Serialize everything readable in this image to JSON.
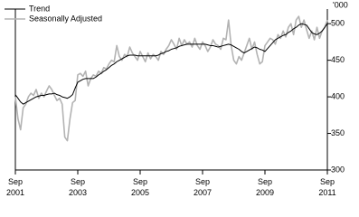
{
  "chart_data": {
    "type": "line",
    "y_unit": "'000",
    "x": [
      "2001-09",
      "2001-10",
      "2001-11",
      "2001-12",
      "2002-01",
      "2002-02",
      "2002-03",
      "2002-04",
      "2002-05",
      "2002-06",
      "2002-07",
      "2002-08",
      "2002-09",
      "2002-10",
      "2002-11",
      "2002-12",
      "2003-01",
      "2003-02",
      "2003-03",
      "2003-04",
      "2003-05",
      "2003-06",
      "2003-07",
      "2003-08",
      "2003-09",
      "2003-10",
      "2003-11",
      "2003-12",
      "2004-01",
      "2004-02",
      "2004-03",
      "2004-04",
      "2004-05",
      "2004-06",
      "2004-07",
      "2004-08",
      "2004-09",
      "2004-10",
      "2004-11",
      "2004-12",
      "2005-01",
      "2005-02",
      "2005-03",
      "2005-04",
      "2005-05",
      "2005-06",
      "2005-07",
      "2005-08",
      "2005-09",
      "2005-10",
      "2005-11",
      "2005-12",
      "2006-01",
      "2006-02",
      "2006-03",
      "2006-04",
      "2006-05",
      "2006-06",
      "2006-07",
      "2006-08",
      "2006-09",
      "2006-10",
      "2006-11",
      "2006-12",
      "2007-01",
      "2007-02",
      "2007-03",
      "2007-04",
      "2007-05",
      "2007-06",
      "2007-07",
      "2007-08",
      "2007-09",
      "2007-10",
      "2007-11",
      "2007-12",
      "2008-01",
      "2008-02",
      "2008-03",
      "2008-04",
      "2008-05",
      "2008-06",
      "2008-07",
      "2008-08",
      "2008-09",
      "2008-10",
      "2008-11",
      "2008-12",
      "2009-01",
      "2009-02",
      "2009-03",
      "2009-04",
      "2009-05",
      "2009-06",
      "2009-07",
      "2009-08",
      "2009-09",
      "2009-10",
      "2009-11",
      "2009-12",
      "2010-01",
      "2010-02",
      "2010-03",
      "2010-04",
      "2010-05",
      "2010-06",
      "2010-07",
      "2010-08",
      "2010-09",
      "2010-10",
      "2010-11",
      "2010-12",
      "2011-01",
      "2011-02",
      "2011-03",
      "2011-04",
      "2011-05",
      "2011-06",
      "2011-07",
      "2011-08",
      "2011-09"
    ],
    "xlim": [
      "2001-09",
      "2011-09"
    ],
    "xticks": [
      {
        "value": "2001-09",
        "label": "Sep 2001"
      },
      {
        "value": "2003-09",
        "label": "Sep 2003"
      },
      {
        "value": "2005-09",
        "label": "Sep 2005"
      },
      {
        "value": "2007-09",
        "label": "Sep 2007"
      },
      {
        "value": "2009-09",
        "label": "Sep 2009"
      },
      {
        "value": "2011-09",
        "label": "Sep 2011"
      }
    ],
    "ylim": [
      300,
      520
    ],
    "yticks": [
      300,
      350,
      400,
      450,
      500
    ],
    "legend": "top-left",
    "series": [
      {
        "name": "Trend",
        "color": "#000000",
        "width": 1,
        "values": [
          403,
          398,
          393,
          390,
          392,
          394,
          396,
          398,
          400,
          401,
          402,
          402,
          403,
          404,
          404,
          405,
          403,
          402,
          400,
          399,
          398,
          400,
          403,
          412,
          420,
          422,
          424,
          425,
          425,
          425,
          425,
          427,
          430,
          432,
          435,
          437,
          440,
          443,
          445,
          448,
          450,
          452,
          454,
          456,
          457,
          457,
          457,
          456,
          456,
          456,
          456,
          456,
          456,
          456,
          456,
          457,
          459,
          460,
          462,
          463,
          465,
          466,
          467,
          469,
          470,
          471,
          472,
          472,
          472,
          472,
          472,
          472,
          472,
          472,
          471,
          470,
          470,
          469,
          468,
          469,
          470,
          471,
          472,
          471,
          469,
          467,
          465,
          462,
          460,
          462,
          464,
          466,
          468,
          467,
          465,
          464,
          462,
          466,
          470,
          474,
          478,
          480,
          482,
          484,
          485,
          488,
          490,
          493,
          495,
          498,
          500,
          499,
          498,
          493,
          488,
          486,
          485,
          487,
          490,
          495,
          500
        ]
      },
      {
        "name": "Seasonally Adjusted",
        "color": "#b3b3b3",
        "width": 1.6,
        "values": [
          400,
          370,
          355,
          385,
          390,
          400,
          405,
          402,
          410,
          398,
          405,
          400,
          408,
          415,
          410,
          402,
          395,
          398,
          390,
          345,
          340,
          370,
          392,
          395,
          430,
          432,
          428,
          435,
          415,
          425,
          430,
          428,
          435,
          432,
          440,
          438,
          445,
          450,
          448,
          470,
          455,
          450,
          458,
          455,
          468,
          460,
          455,
          450,
          462,
          455,
          448,
          460,
          452,
          458,
          455,
          450,
          462,
          458,
          465,
          470,
          478,
          472,
          465,
          480,
          470,
          478,
          472,
          475,
          468,
          480,
          470,
          465,
          475,
          470,
          462,
          468,
          478,
          472,
          470,
          465,
          480,
          478,
          505,
          470,
          450,
          445,
          455,
          450,
          460,
          470,
          480,
          465,
          475,
          458,
          445,
          448,
          470,
          475,
          480,
          478,
          472,
          485,
          480,
          490,
          482,
          495,
          500,
          485,
          505,
          510,
          495,
          505,
          492,
          480,
          490,
          478,
          495,
          480,
          490,
          495,
          505
        ]
      }
    ]
  }
}
